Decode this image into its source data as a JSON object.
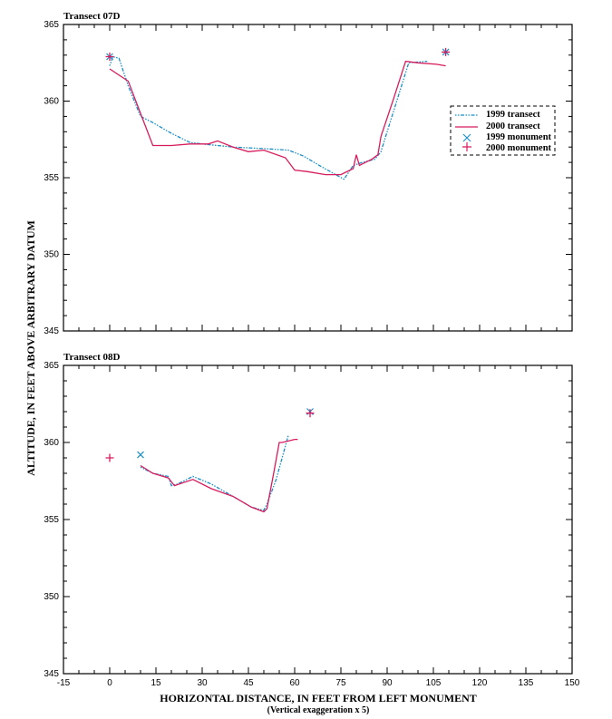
{
  "chart_data": [
    {
      "type": "line",
      "title": "Transect 07D",
      "xlabel": "HORIZONTAL DISTANCE, IN FEET FROM LEFT MONUMENT",
      "xlabel_sub": "(Vertical exaggeration x 5)",
      "ylabel": "ALTITUDE, IN FEET ABOVE ARBITRARY DATUM",
      "xlim": [
        -15,
        150
      ],
      "ylim": [
        345,
        365
      ],
      "xticks": [
        -15,
        0,
        15,
        30,
        45,
        60,
        75,
        90,
        105,
        120,
        135,
        150
      ],
      "yticks": [
        345,
        350,
        355,
        360,
        365
      ],
      "legend_position": "right-middle",
      "series": [
        {
          "name": "1999 transect",
          "style": "dotted",
          "color": "#1a8fc8",
          "x": [
            0,
            1,
            3,
            6,
            10,
            14,
            20,
            26,
            30,
            40,
            50,
            58,
            63,
            68,
            76,
            79,
            82,
            86,
            88,
            90,
            97,
            103
          ],
          "y": [
            362.3,
            362.9,
            362.8,
            361.0,
            359.0,
            358.6,
            357.9,
            357.3,
            357.2,
            357.0,
            356.9,
            356.8,
            356.4,
            355.8,
            354.9,
            355.8,
            356.0,
            356.2,
            356.7,
            358.0,
            362.5,
            362.6
          ]
        },
        {
          "name": "2000 transect",
          "style": "solid",
          "color": "#d81b5c",
          "x": [
            0,
            6,
            10,
            14,
            20,
            26,
            32,
            35,
            40,
            45,
            50,
            57,
            60,
            64,
            70,
            75,
            79,
            80,
            81,
            85,
            87,
            88,
            92,
            96,
            100,
            106,
            109
          ],
          "y": [
            362.1,
            361.3,
            359.2,
            357.1,
            357.1,
            357.2,
            357.2,
            357.4,
            357.0,
            356.7,
            356.8,
            356.3,
            355.5,
            355.4,
            355.2,
            355.2,
            355.6,
            356.5,
            355.8,
            356.2,
            356.5,
            357.7,
            360.1,
            362.6,
            362.5,
            362.4,
            362.3
          ]
        },
        {
          "name": "1999 monument",
          "marker": "x",
          "color": "#1a8fc8",
          "x": [
            0,
            109
          ],
          "y": [
            362.9,
            363.2
          ]
        },
        {
          "name": "2000 monument",
          "marker": "+",
          "color": "#d81b5c",
          "x": [
            0,
            109
          ],
          "y": [
            362.9,
            363.2
          ]
        }
      ]
    },
    {
      "type": "line",
      "title": "Transect 08D",
      "xlabel": "HORIZONTAL DISTANCE, IN FEET FROM LEFT MONUMENT",
      "xlabel_sub": "(Vertical exaggeration x 5)",
      "ylabel": "ALTITUDE, IN FEET ABOVE ARBITRARY DATUM",
      "xlim": [
        -15,
        150
      ],
      "ylim": [
        345,
        365
      ],
      "xticks": [
        -15,
        0,
        15,
        30,
        45,
        60,
        75,
        90,
        105,
        120,
        135,
        150
      ],
      "yticks": [
        345,
        350,
        355,
        360,
        365
      ],
      "series": [
        {
          "name": "1999 transect",
          "style": "dotted",
          "color": "#1a8fc8",
          "x": [
            10,
            14,
            19,
            20,
            22,
            27,
            33,
            40,
            46,
            50,
            51,
            54,
            58
          ],
          "y": [
            358.4,
            358.0,
            357.8,
            357.2,
            357.3,
            357.8,
            357.3,
            356.5,
            355.8,
            355.6,
            356.0,
            357.6,
            360.5
          ]
        },
        {
          "name": "2000 transect",
          "style": "solid",
          "color": "#d81b5c",
          "x": [
            10,
            14,
            19,
            21,
            27,
            33,
            40,
            46,
            50,
            51,
            53,
            55,
            56,
            60,
            61
          ],
          "y": [
            358.5,
            358.0,
            357.7,
            357.2,
            357.6,
            357.0,
            356.5,
            355.8,
            355.5,
            355.7,
            357.8,
            360.0,
            360.0,
            360.2,
            360.2
          ]
        },
        {
          "name": "1999 monument",
          "marker": "x",
          "color": "#1a8fc8",
          "x": [
            10,
            65
          ],
          "y": [
            359.2,
            362.0
          ]
        },
        {
          "name": "2000 monument",
          "marker": "+",
          "color": "#d81b5c",
          "x": [
            0,
            65
          ],
          "y": [
            359.0,
            361.9
          ]
        }
      ]
    }
  ],
  "labels": {
    "title_top": "Transect 07D",
    "title_bottom": "Transect 08D",
    "xlabel": "HORIZONTAL DISTANCE, IN FEET FROM LEFT MONUMENT",
    "xlabel_sub": "(Vertical exaggeration x 5)",
    "ylabel": "ALTITUDE, IN FEET ABOVE ARBITRARY DATUM",
    "legend": [
      "1999 transect",
      "2000 transect",
      "1999 monument",
      "2000 monument"
    ],
    "xticks": [
      "-15",
      "0",
      "15",
      "30",
      "45",
      "60",
      "75",
      "90",
      "105",
      "120",
      "135",
      "150"
    ],
    "yticks_top": [
      "365",
      "360",
      "355",
      "350",
      "345"
    ],
    "yticks_bottom": [
      "365",
      "360",
      "355",
      "350",
      "345"
    ]
  },
  "colors": {
    "c1999": "#1a8fc8",
    "c2000": "#d81b5c"
  }
}
